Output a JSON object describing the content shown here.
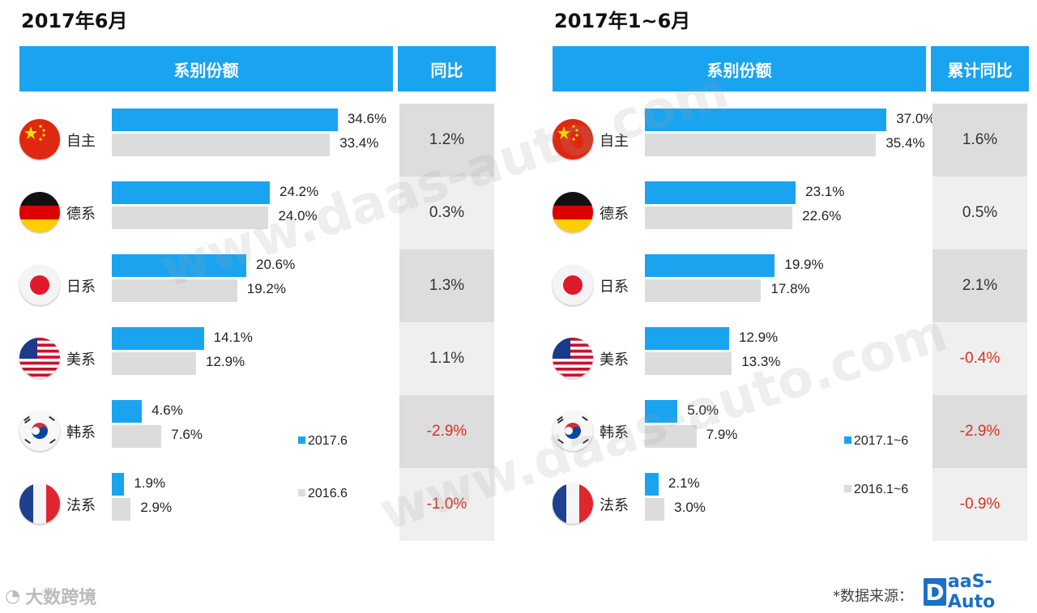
{
  "panels": [
    {
      "title": "2017年6月",
      "header_share": "系别份额",
      "header_yoy": "同比",
      "legend": [
        {
          "label": "2017.6",
          "color": "#1aa4f0"
        },
        {
          "label": "2016.6",
          "color": "#dcdcdc"
        }
      ]
    },
    {
      "title": "2017年1~6月",
      "header_share": "系别份额",
      "header_yoy": "累计同比",
      "legend": [
        {
          "label": "2017.1~6",
          "color": "#1aa4f0"
        },
        {
          "label": "2016.1~6",
          "color": "#dcdcdc"
        }
      ]
    }
  ],
  "chart_data": [
    {
      "type": "bar",
      "title": "2017年6月",
      "categories": [
        "自主",
        "德系",
        "日系",
        "美系",
        "韩系",
        "法系"
      ],
      "flags": [
        "china-flag-icon",
        "germany-flag-icon",
        "japan-flag-icon",
        "usa-flag-icon",
        "korea-flag-icon",
        "france-flag-icon"
      ],
      "series": [
        {
          "name": "2017.6",
          "values": [
            34.6,
            24.2,
            20.6,
            14.1,
            4.6,
            1.9
          ],
          "labels": [
            "34.6%",
            "24.2%",
            "20.6%",
            "14.1%",
            "4.6%",
            "1.9%"
          ],
          "color": "#1aa4f0"
        },
        {
          "name": "2016.6",
          "values": [
            33.4,
            24.0,
            19.2,
            12.9,
            7.6,
            2.9
          ],
          "labels": [
            "33.4%",
            "24.0%",
            "19.2%",
            "12.9%",
            "7.6%",
            "2.9%"
          ],
          "color": "#dcdcdc"
        }
      ],
      "yoy_label": "同比",
      "yoy": [
        "1.2%",
        "0.3%",
        "1.3%",
        "1.1%",
        "-2.9%",
        "-1.0%"
      ],
      "negative_color": "#d9301f"
    },
    {
      "type": "bar",
      "title": "2017年1~6月",
      "categories": [
        "自主",
        "德系",
        "日系",
        "美系",
        "韩系",
        "法系"
      ],
      "flags": [
        "china-flag-icon",
        "germany-flag-icon",
        "japan-flag-icon",
        "usa-flag-icon",
        "korea-flag-icon",
        "france-flag-icon"
      ],
      "series": [
        {
          "name": "2017.1~6",
          "values": [
            37.0,
            23.1,
            19.9,
            12.9,
            5.0,
            2.1
          ],
          "labels": [
            "37.0%",
            "23.1%",
            "19.9%",
            "12.9%",
            "5.0%",
            "2.1%"
          ],
          "color": "#1aa4f0"
        },
        {
          "name": "2016.1~6",
          "values": [
            35.4,
            22.6,
            17.8,
            13.3,
            7.9,
            3.0
          ],
          "labels": [
            "35.4%",
            "22.6%",
            "17.8%",
            "13.3%",
            "7.9%",
            "3.0%"
          ],
          "color": "#dcdcdc"
        }
      ],
      "yoy_label": "累计同比",
      "yoy": [
        "1.6%",
        "0.5%",
        "2.1%",
        "-0.4%",
        "-2.9%",
        "-0.9%"
      ],
      "negative_color": "#d9301f"
    }
  ],
  "watermark": "www.daas-auto.com",
  "footer": {
    "left_brand": "大数跨境",
    "source_label": "*数据来源：",
    "brand_letter": "D",
    "brand_rest": "aaS-Auto"
  }
}
